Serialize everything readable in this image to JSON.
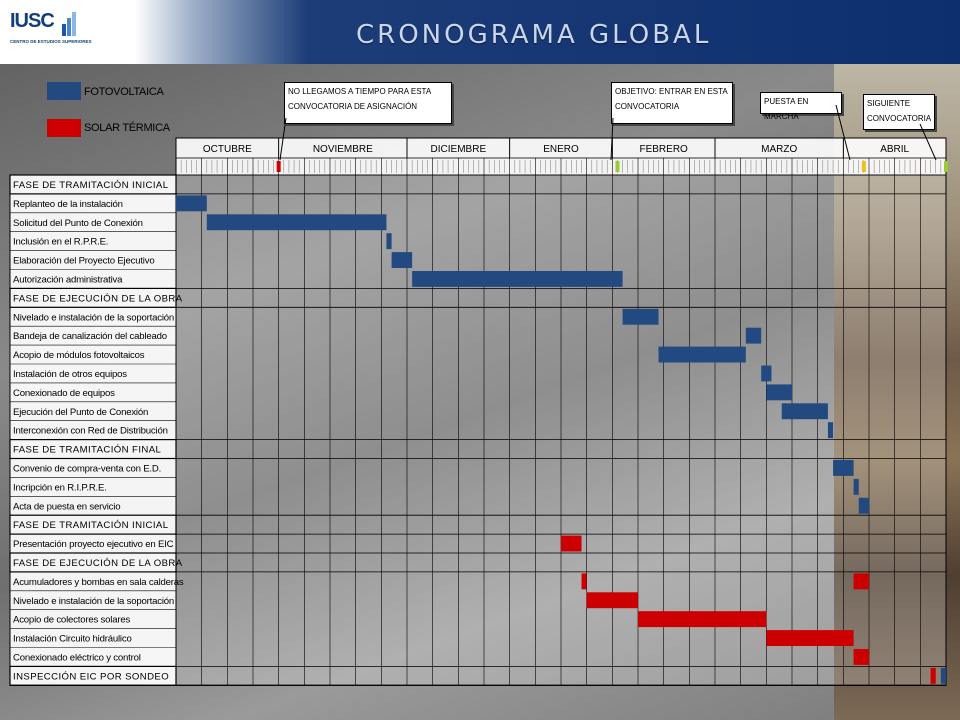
{
  "header": {
    "title": "CRONOGRAMA GLOBAL"
  },
  "logo": {
    "name": "IUSC",
    "subtitle": "CENTRO DE ESTUDIOS SUPERIORES"
  },
  "legend": [
    {
      "label": "FOTOVOLTAICA",
      "color": "#234a80"
    },
    {
      "label": "SOLAR TÉRMICA",
      "color": "#cc0000"
    }
  ],
  "callouts": [
    {
      "text": "NO LLEGAMOS A TIEMPO PARA ESTA CONVOCATORIA DE ASIGNACIÓN"
    },
    {
      "text": "OBJETIVO: ENTRAR EN ESTA CONVOCATORIA"
    },
    {
      "text": "PUESTA EN MARCHA"
    },
    {
      "text": "SIGUIENTE CONVOCATORIA"
    }
  ],
  "chart_data": {
    "type": "gantt",
    "title": "CRONOGRAMA GLOBAL",
    "time_unit": "week",
    "months": [
      {
        "label": "OCTUBRE",
        "weeks": 4
      },
      {
        "label": "NOVIEMBRE",
        "weeks": 5
      },
      {
        "label": "DICIEMBRE",
        "weeks": 4
      },
      {
        "label": "ENERO",
        "weeks": 4
      },
      {
        "label": "FEBRERO",
        "weeks": 4
      },
      {
        "label": "MARZO",
        "weeks": 5
      },
      {
        "label": "ABRIL",
        "weeks": 4
      }
    ],
    "milestones": [
      {
        "week": 4.0,
        "color": "#cc0000"
      },
      {
        "week": 17.2,
        "color": "#9acd32"
      },
      {
        "week": 26.8,
        "color": "#f0c020"
      },
      {
        "week": 30.0,
        "color": "#9acd32"
      }
    ],
    "tasks": [
      {
        "label": "FASE DE TRAMITACIÓN INICIAL",
        "phase": true
      },
      {
        "label": "Replanteo de la instalación",
        "series": "FOTOVOLTAICA",
        "start": 0.0,
        "end": 1.2
      },
      {
        "label": "Solicitud del Punto de Conexión",
        "series": "FOTOVOLTAICA",
        "start": 1.2,
        "end": 8.2
      },
      {
        "label": "Inclusión en el R.P.R.E.",
        "series": "FOTOVOLTAICA",
        "start": 8.2,
        "end": 8.4
      },
      {
        "label": "Elaboración del Proyecto Ejecutivo",
        "series": "FOTOVOLTAICA",
        "start": 8.4,
        "end": 9.2
      },
      {
        "label": "Autorización administrativa",
        "series": "FOTOVOLTAICA",
        "start": 9.2,
        "end": 17.4
      },
      {
        "label": "FASE DE EJECUCIÓN DE LA OBRA",
        "phase": true
      },
      {
        "label": "Nivelado e instalación de la soportación",
        "series": "FOTOVOLTAICA",
        "start": 17.4,
        "end": 18.8
      },
      {
        "label": "Bandeja de canalización del cableado",
        "series": "FOTOVOLTAICA",
        "start": 22.2,
        "end": 22.8
      },
      {
        "label": "Acopio de módulos fotovoltaicos",
        "series": "FOTOVOLTAICA",
        "start": 18.8,
        "end": 22.2
      },
      {
        "label": "Instalación de otros equipos",
        "series": "FOTOVOLTAICA",
        "start": 22.8,
        "end": 23.2
      },
      {
        "label": "Conexionado de equipos",
        "series": "FOTOVOLTAICA",
        "start": 23.0,
        "end": 24.0
      },
      {
        "label": "Ejecución del Punto de Conexión",
        "series": "FOTOVOLTAICA",
        "start": 23.6,
        "end": 25.4
      },
      {
        "label": "Interconexión con Red de Distribución",
        "series": "FOTOVOLTAICA",
        "start": 25.4,
        "end": 25.6
      },
      {
        "label": "FASE DE TRAMITACIÓN FINAL",
        "phase": true
      },
      {
        "label": "Convenio de compra-venta con E.D.",
        "series": "FOTOVOLTAICA",
        "start": 25.6,
        "end": 26.4
      },
      {
        "label": "Incripción en R.I.P.R.E.",
        "series": "FOTOVOLTAICA",
        "start": 26.4,
        "end": 26.6
      },
      {
        "label": "Acta de puesta en servicio",
        "series": "FOTOVOLTAICA",
        "start": 26.6,
        "end": 27.0
      },
      {
        "label": "FASE DE TRAMITACIÓN INICIAL",
        "phase": true
      },
      {
        "label": "Presentación proyecto ejecutivo en EIC",
        "series": "SOLAR TÉRMICA",
        "start": 15.0,
        "end": 15.8
      },
      {
        "label": "FASE DE EJECUCIÓN DE LA OBRA",
        "phase": true
      },
      {
        "label": "Acumuladores y bombas en sala calderas",
        "series": "SOLAR TÉRMICA",
        "start": 15.8,
        "end": 16.0,
        "extra": [
          {
            "start": 26.4,
            "end": 27.0
          }
        ]
      },
      {
        "label": "Nivelado e instalación de la soportación",
        "series": "SOLAR TÉRMICA",
        "start": 16.0,
        "end": 18.0
      },
      {
        "label": "Acopio de colectores solares",
        "series": "SOLAR TÉRMICA",
        "start": 18.0,
        "end": 23.0
      },
      {
        "label": "Instalación Circuito hidráulico",
        "series": "SOLAR TÉRMICA",
        "start": 23.0,
        "end": 26.4
      },
      {
        "label": "Conexionado eléctrico y control",
        "series": "SOLAR TÉRMICA",
        "start": 26.4,
        "end": 27.0
      },
      {
        "label": "INSPECCIÓN EIC POR SONDEO",
        "phase": true,
        "marks": [
          {
            "start": 29.4,
            "end": 29.6,
            "series": "SOLAR TÉRMICA"
          },
          {
            "start": 29.8,
            "end": 30.0,
            "series": "FOTOVOLTAICA"
          }
        ]
      }
    ]
  }
}
